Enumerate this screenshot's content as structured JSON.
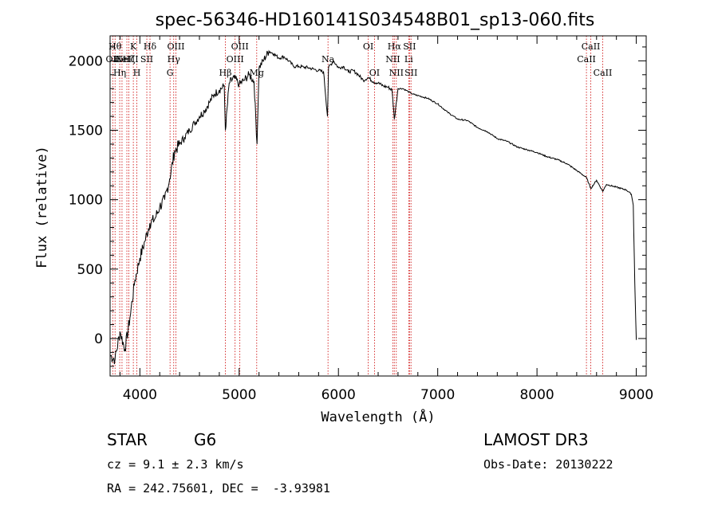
{
  "chart_data": {
    "type": "line",
    "title": "spec-56346-HD160141S034548B01_sp13-060.fits",
    "xlabel": "Wavelength (Å)",
    "ylabel": "Flux (relative)",
    "xlim": [
      3700,
      9100
    ],
    "ylim": [
      -270,
      2180
    ],
    "xticks": [
      4000,
      5000,
      6000,
      7000,
      8000,
      9000
    ],
    "yticks": [
      0,
      500,
      1000,
      1500,
      2000
    ],
    "series": [
      {
        "name": "flux",
        "x": [
          3700,
          3750,
          3800,
          3850,
          3900,
          3950,
          4000,
          4050,
          4100,
          4150,
          4200,
          4250,
          4300,
          4350,
          4400,
          4450,
          4500,
          4550,
          4600,
          4650,
          4700,
          4750,
          4800,
          4850,
          4861,
          4900,
          4950,
          5000,
          5050,
          5100,
          5150,
          5180,
          5200,
          5250,
          5300,
          5350,
          5400,
          5450,
          5500,
          5550,
          5600,
          5650,
          5700,
          5750,
          5800,
          5850,
          5890,
          5900,
          5950,
          6000,
          6050,
          6100,
          6150,
          6200,
          6250,
          6300,
          6350,
          6400,
          6450,
          6500,
          6540,
          6563,
          6600,
          6650,
          6700,
          6750,
          6800,
          6900,
          7000,
          7100,
          7200,
          7300,
          7400,
          7500,
          7600,
          7700,
          7800,
          7900,
          8000,
          8100,
          8200,
          8300,
          8400,
          8498,
          8542,
          8600,
          8662,
          8700,
          8800,
          8900,
          8950,
          8970,
          8985,
          9000
        ],
        "y": [
          -120,
          -150,
          50,
          -80,
          150,
          420,
          580,
          700,
          830,
          860,
          950,
          1000,
          1150,
          1350,
          1400,
          1450,
          1500,
          1550,
          1600,
          1640,
          1700,
          1760,
          1790,
          1820,
          1500,
          1840,
          1880,
          1830,
          1860,
          1900,
          1850,
          1400,
          1950,
          2010,
          2070,
          2050,
          2020,
          2030,
          2000,
          1960,
          1960,
          1955,
          1950,
          1940,
          1930,
          1920,
          1600,
          1950,
          2000,
          1950,
          1960,
          1920,
          1930,
          1900,
          1860,
          1880,
          1850,
          1840,
          1820,
          1810,
          1790,
          1580,
          1800,
          1800,
          1780,
          1760,
          1750,
          1730,
          1690,
          1630,
          1580,
          1570,
          1520,
          1490,
          1440,
          1420,
          1380,
          1360,
          1340,
          1310,
          1290,
          1260,
          1210,
          1160,
          1080,
          1140,
          1060,
          1110,
          1090,
          1070,
          1040,
          960,
          400,
          -10
        ]
      }
    ],
    "line_markers": [
      {
        "wavelength": 3727,
        "label": "OII",
        "row": 1
      },
      {
        "wavelength": 3750,
        "label": "Hθ",
        "row": 0
      },
      {
        "wavelength": 3797,
        "label": "Hη",
        "row": 2
      },
      {
        "wavelength": 3820,
        "label": "HeI",
        "row": 1
      },
      {
        "wavelength": 3869,
        "label": "NeIII",
        "row": 1
      },
      {
        "wavelength": 3889,
        "label": "Hζ",
        "row": 1
      },
      {
        "wavelength": 3934,
        "label": "K",
        "row": 0
      },
      {
        "wavelength": 3970,
        "label": "H",
        "row": 2
      },
      {
        "wavelength": 4070,
        "label": "SII",
        "row": 1
      },
      {
        "wavelength": 4102,
        "label": "Hδ",
        "row": 0
      },
      {
        "wavelength": 4304,
        "label": "G",
        "row": 2
      },
      {
        "wavelength": 4341,
        "label": "Hγ",
        "row": 1
      },
      {
        "wavelength": 4363,
        "label": "OIII",
        "row": 0
      },
      {
        "wavelength": 4861,
        "label": "Hβ",
        "row": 2
      },
      {
        "wavelength": 4959,
        "label": "OIII",
        "row": 1
      },
      {
        "wavelength": 5007,
        "label": "OIII",
        "row": 0
      },
      {
        "wavelength": 5177,
        "label": "Mg",
        "row": 2
      },
      {
        "wavelength": 5895,
        "label": "Na",
        "row": 1
      },
      {
        "wavelength": 6300,
        "label": "OI",
        "row": 0
      },
      {
        "wavelength": 6363,
        "label": "OI",
        "row": 2
      },
      {
        "wavelength": 6548,
        "label": "NII",
        "row": 1
      },
      {
        "wavelength": 6563,
        "label": "Hα",
        "row": 0
      },
      {
        "wavelength": 6583,
        "label": "NII",
        "row": 2
      },
      {
        "wavelength": 6708,
        "label": "Li",
        "row": 1
      },
      {
        "wavelength": 6716,
        "label": "SII",
        "row": 0
      },
      {
        "wavelength": 6731,
        "label": "SII",
        "row": 2
      },
      {
        "wavelength": 8498,
        "label": "CaII",
        "row": 1
      },
      {
        "wavelength": 8542,
        "label": "CaII",
        "row": 0
      },
      {
        "wavelength": 8662,
        "label": "CaII",
        "row": 2
      }
    ]
  },
  "info": {
    "object_class": "STAR",
    "subclass": "G6",
    "survey": "LAMOST DR3",
    "redshift_line": "cz = 9.1 ± 2.3 km/s",
    "obs_date_line": "Obs-Date: 20130222",
    "coords_line": "RA = 242.75601, DEC =  -3.93981"
  },
  "colors": {
    "line_marker": "#cc0000",
    "spectrum": "#000000",
    "axis": "#000000"
  }
}
